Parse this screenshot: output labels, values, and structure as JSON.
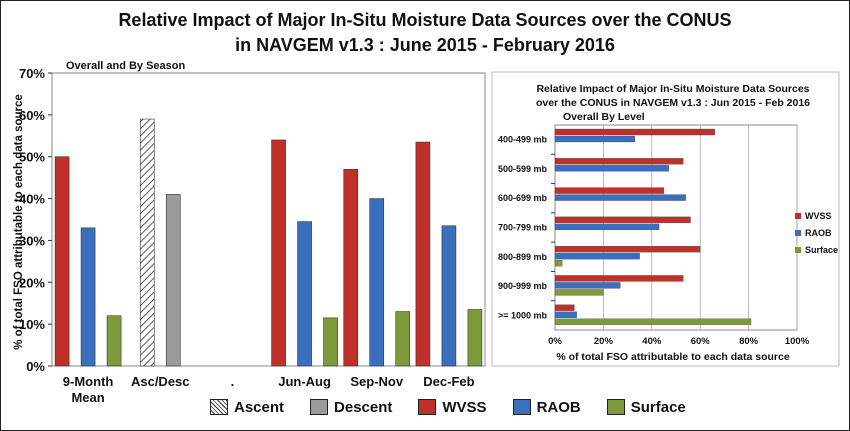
{
  "title_line1": "Relative Impact of Major In-Situ Moisture Data Sources over the CONUS",
  "title_line2": "in NAVGEM v1.3 :   June 2015 - February 2016",
  "colors": {
    "ascent": "#ffffff",
    "descent": "#9b9b9b",
    "wvss": "#c0302b",
    "raob": "#3b6fbd",
    "surface": "#7f9a3a"
  },
  "chart_data": [
    {
      "type": "bar",
      "subtitle": "Overall and By Season",
      "ylabel": "% of total FSO attributable to each data source",
      "ylim": [
        0,
        70
      ],
      "yticks": [
        "0%",
        "10%",
        "20%",
        "30%",
        "40%",
        "50%",
        "60%",
        "70%"
      ],
      "categories": [
        "9-Month Mean",
        "Asc/Desc",
        ".",
        "Jun-Aug",
        "Sep-Nov",
        "Dec-Feb"
      ],
      "category_lines": [
        [
          "9-Month",
          "Mean"
        ],
        [
          "Asc/Desc"
        ],
        [
          "."
        ],
        [
          "Jun-Aug"
        ],
        [
          "Sep-Nov"
        ],
        [
          "Dec-Feb"
        ]
      ],
      "series": [
        {
          "name": "Ascent",
          "values": [
            null,
            59,
            null,
            null,
            null,
            null
          ]
        },
        {
          "name": "Descent",
          "values": [
            null,
            41,
            null,
            null,
            null,
            null
          ]
        },
        {
          "name": "WVSS",
          "values": [
            50,
            null,
            null,
            54,
            47,
            53.5
          ]
        },
        {
          "name": "RAOB",
          "values": [
            33,
            null,
            null,
            34.5,
            40,
            33.5
          ]
        },
        {
          "name": "Surface",
          "values": [
            12,
            null,
            null,
            11.5,
            13,
            13.5
          ]
        }
      ],
      "legend": "bottom",
      "grid": false
    },
    {
      "type": "bar",
      "orientation": "horizontal",
      "title": "Relative Impact of Major In-Situ Moisture Data Sources over the CONUS in NAVGEM v1.3 :   Jun 2015 - Feb 2016",
      "title_lines": [
        "Relative Impact of Major In-Situ Moisture Data Sources",
        "over the CONUS in NAVGEM v1.3 :   Jun 2015 - Feb 2016"
      ],
      "subtitle": "Overall By Level",
      "xlabel": "% of total FSO attributable to each data source",
      "xlim": [
        0,
        100
      ],
      "xticks": [
        "0%",
        "20%",
        "40%",
        "60%",
        "80%",
        "100%"
      ],
      "categories": [
        "400-499 mb",
        "500-599 mb",
        "600-699 mb",
        "700-799 mb",
        "800-899 mb",
        "900-999 mb",
        ">= 1000 mb"
      ],
      "series": [
        {
          "name": "WVSS",
          "values": [
            66,
            53,
            45,
            56,
            60,
            53,
            8
          ]
        },
        {
          "name": "RAOB",
          "values": [
            33,
            47,
            54,
            43,
            35,
            27,
            9
          ]
        },
        {
          "name": "Surface",
          "values": [
            null,
            null,
            null,
            null,
            3,
            20,
            81
          ]
        }
      ],
      "legend": "right",
      "grid": true
    }
  ]
}
